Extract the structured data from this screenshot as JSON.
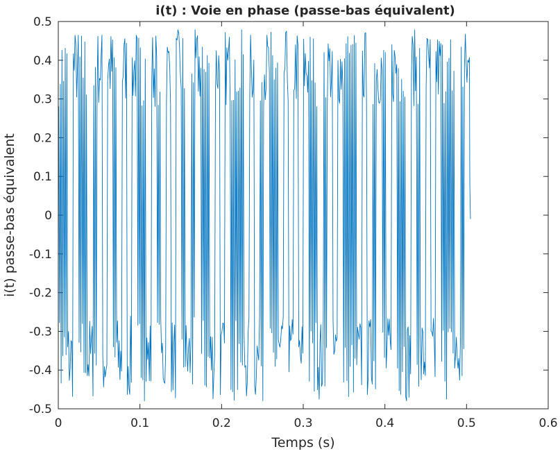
{
  "chart_data": {
    "type": "line",
    "title": "i(t) : Voie en phase (passe-bas équivalent)",
    "xlabel": "Temps (s)",
    "ylabel": "i(t) passe-bas équivalent",
    "xlim": [
      0,
      0.6
    ],
    "ylim": [
      -0.5,
      0.5
    ],
    "xticks": [
      0,
      0.1,
      0.2,
      0.3,
      0.4,
      0.5,
      0.6
    ],
    "xtick_labels": [
      "0",
      "0.1",
      "0.2",
      "0.3",
      "0.4",
      "0.5",
      "0.6"
    ],
    "yticks": [
      0.5,
      0.4,
      0.3,
      0.2,
      0.1,
      0,
      -0.1,
      -0.2,
      -0.3,
      -0.4,
      -0.5
    ],
    "ytick_labels": [
      "0.5",
      "0.4",
      "0.3",
      "0.2",
      "0.1",
      "0",
      "-0.1",
      "-0.2",
      "-0.3",
      "-0.4",
      "-0.5"
    ],
    "grid": false,
    "line_color": "#0072BD",
    "signal_duration": 0.504,
    "symbol_duration": 0.006,
    "symbols": [
      1,
      1,
      0,
      1,
      1,
      1,
      0,
      0,
      1,
      0,
      1,
      1,
      0,
      1,
      0,
      1,
      1,
      1,
      0,
      1,
      1,
      0,
      1,
      0,
      1,
      1,
      0,
      0,
      1,
      1,
      1,
      0,
      1,
      0,
      1,
      1,
      1,
      1,
      0,
      1,
      0,
      0,
      1,
      1,
      1,
      0,
      1,
      0,
      1,
      0,
      1,
      1,
      1,
      0,
      0,
      1,
      0,
      1,
      1,
      1,
      1,
      0,
      1,
      0,
      0,
      1,
      1,
      0,
      1,
      1,
      1,
      0,
      1,
      1,
      0,
      1,
      0,
      1,
      1,
      1,
      1,
      0,
      0,
      1
    ],
    "levels": {
      "high": [
        0.28,
        0.48
      ],
      "low": [
        -0.48,
        -0.26
      ]
    }
  }
}
